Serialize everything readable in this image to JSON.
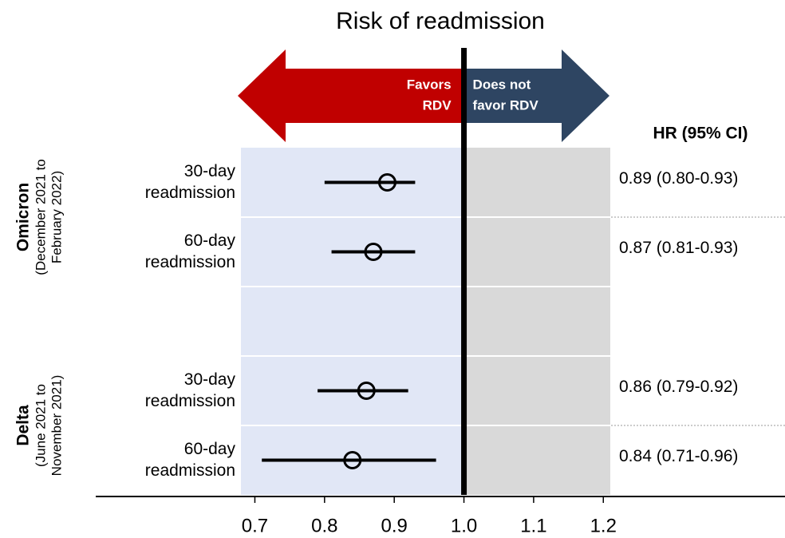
{
  "chart_data": {
    "type": "forest",
    "title": "Risk of readmission",
    "arrows": {
      "left": {
        "lines": [
          "Favors",
          "RDV"
        ],
        "color": "#c00000"
      },
      "right": {
        "lines": [
          "Does not",
          "favor RDV"
        ],
        "color": "#2e4562"
      }
    },
    "panel_colors": {
      "left": "#e1e7f6",
      "right": "#d9d9d9"
    },
    "column_header": "HR (95% CI)",
    "ref_line": 1,
    "xlim": [
      0.68,
      1.21
    ],
    "xticks": [
      0.7,
      0.8,
      0.9,
      {
        "value": 1,
        "label": "1.0"
      },
      1.1,
      1.2
    ],
    "groups": [
      {
        "name": "Omicron",
        "subtitle_lines": [
          "(December 2021 to",
          "February 2022)"
        ],
        "categories": [
          [
            "30-day",
            "readmission"
          ],
          [
            "60-day",
            "readmission"
          ]
        ],
        "values": [
          0.89,
          0.87
        ],
        "low": [
          0.8,
          0.81
        ],
        "high": [
          0.93,
          0.93
        ],
        "value_labels": [
          "0.89 (0.80-0.93)",
          "0.87 (0.81-0.93)"
        ]
      },
      {
        "name": "Delta",
        "subtitle_lines": [
          "(June 2021 to",
          "November 2021)"
        ],
        "categories": [
          [
            "30-day",
            "readmission"
          ],
          [
            "60-day",
            "readmission"
          ]
        ],
        "values": [
          0.86,
          0.84
        ],
        "low": [
          0.79,
          0.71
        ],
        "high": [
          0.92,
          0.96
        ],
        "value_labels": [
          "0.86 (0.79-0.92)",
          "0.84 (0.71-0.96)"
        ]
      }
    ]
  }
}
